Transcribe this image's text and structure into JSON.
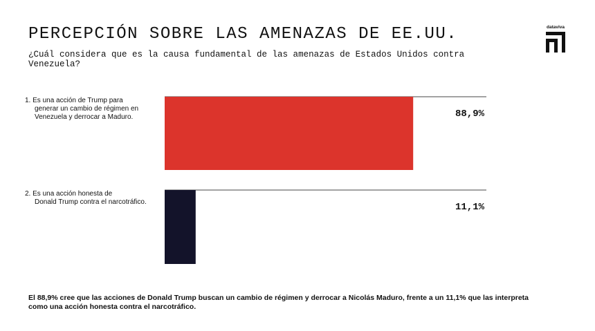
{
  "header": {
    "title": "PERCEPCIÓN SOBRE LAS AMENAZAS DE EE.UU.",
    "subtitle": "¿Cuál considera que es la causa fundamental de las amenazas de Estados Unidos contra Venezuela?"
  },
  "brand": {
    "name": "dataviva",
    "icon": "dataviva-logo-icon"
  },
  "chart_data": {
    "type": "bar",
    "orientation": "horizontal",
    "categories": [
      "1. Es una acción de Trump para generar un cambio de régimen en Venezuela y derrocar a Maduro.",
      "2. Es una acción honesta de Donald Trump contra el narcotráfico."
    ],
    "category_label_lines": [
      [
        "1.  Es una acción de Trump para",
        "generar un cambio de régimen en",
        "Venezuela y derrocar a Maduro."
      ],
      [
        "2.  Es una acción honesta de",
        "Donald Trump contra el narcotráfico."
      ]
    ],
    "values": [
      88.9,
      11.1
    ],
    "value_labels": [
      "88,9%",
      "11,1%"
    ],
    "colors": [
      "#dc342c",
      "#13132a"
    ],
    "xlim": [
      0,
      100
    ],
    "unit": "%",
    "title": "",
    "xlabel": "",
    "ylabel": "",
    "grid": false,
    "legend": "none"
  },
  "footnote": "El 88,9% cree que las acciones de Donald Trump buscan un cambio de régimen y derrocar a Nicolás Maduro, frente a un 11,1% que las interpreta como una acción honesta contra el narcotráfico."
}
